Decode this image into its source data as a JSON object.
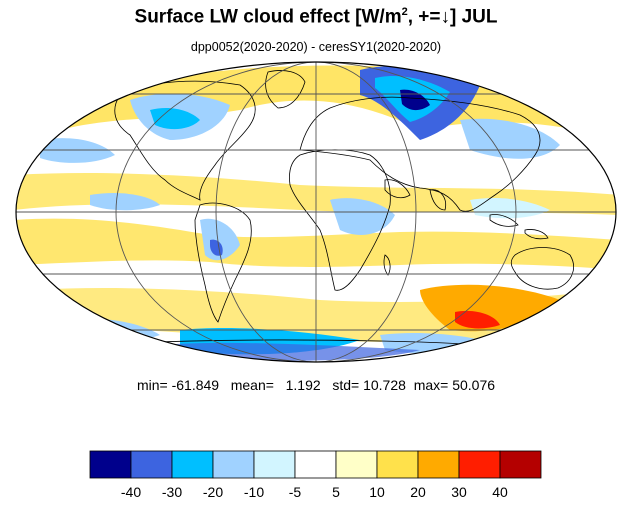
{
  "title": {
    "main": "Surface LW cloud effect [W/m",
    "superscript": "2",
    "suffix": ", +=↓]  JUL"
  },
  "subtitle": "dpp0052(2020-2020) - ceresSY1(2020-2020)",
  "stats": {
    "min_label": "min=",
    "min": "-61.849",
    "mean_label": "mean=",
    "mean": "1.192",
    "std_label": "std=",
    "std": "10.728",
    "max_label": "max=",
    "max": "50.076"
  },
  "map": {
    "projection": "Mollweide",
    "grid": true,
    "background": "#ffffff",
    "coastline_color": "#000000"
  },
  "colorbar": {
    "colors": [
      "#00008c",
      "#3d64e0",
      "#00bfff",
      "#a0d2ff",
      "#d2f5ff",
      "#ffffff",
      "#ffffc8",
      "#ffe14b",
      "#ffaa00",
      "#ff1e00",
      "#b40000"
    ],
    "ticks": [
      "-40",
      "-30",
      "-20",
      "-10",
      "-5",
      "5",
      "10",
      "20",
      "30",
      "40"
    ]
  }
}
